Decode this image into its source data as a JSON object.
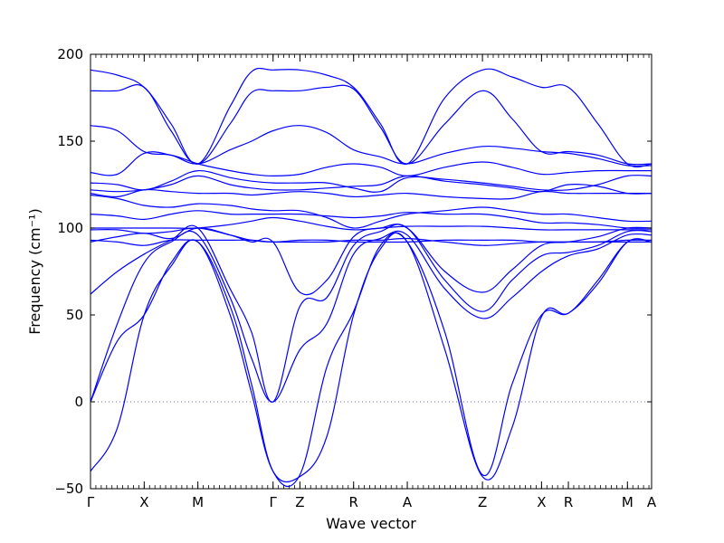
{
  "chart_data": {
    "type": "line",
    "title": "",
    "xlabel": "Wave vector",
    "ylabel": "Frequency (cm⁻¹)",
    "ylim": [
      -50,
      200
    ],
    "yticks": [
      -50,
      0,
      50,
      100,
      150,
      200
    ],
    "grid": false,
    "zero_line": {
      "y": 0,
      "style": "dotted"
    },
    "colors": {
      "bands": "#0000ff",
      "zero_line": "#6f6f9f",
      "axes": "#000000"
    },
    "x_segments": [
      {
        "label": "Γ",
        "x": 0.0
      },
      {
        "label": "X",
        "x": 1.0
      },
      {
        "label": "M",
        "x": 2.0
      },
      {
        "label": "Γ",
        "x": 3.4
      },
      {
        "label": "Z",
        "x": 3.9
      },
      {
        "label": "R",
        "x": 4.9
      },
      {
        "label": "A",
        "x": 5.9
      },
      {
        "label": "Z",
        "x": 7.3
      },
      {
        "label": "X",
        "x": 8.4
      },
      {
        "label": "R",
        "x": 8.9
      },
      {
        "label": "M",
        "x": 10.0
      },
      {
        "label": "A",
        "x": 10.45
      }
    ],
    "xlim": [
      0,
      10.45
    ],
    "series_points": {
      "x": [
        0.0,
        0.5,
        1.0,
        1.5,
        2.0,
        2.6,
        3.0,
        3.4,
        3.9,
        4.4,
        4.9,
        5.4,
        5.9,
        6.6,
        7.3,
        7.85,
        8.4,
        8.9,
        9.45,
        10.0,
        10.45
      ],
      "series": [
        {
          "values": [
            191,
            188,
            181,
            160,
            137,
            170,
            190,
            191,
            191,
            188,
            181,
            160,
            137,
            175,
            191,
            187,
            181,
            181,
            160,
            137,
            137
          ]
        },
        {
          "values": [
            179,
            179,
            181,
            156,
            137,
            160,
            178,
            179,
            179,
            181,
            180,
            158,
            137,
            160,
            179,
            163,
            144,
            144,
            142,
            137,
            137
          ]
        },
        {
          "values": [
            159,
            156,
            144,
            142,
            137,
            145,
            150,
            156,
            159,
            155,
            145,
            141,
            137,
            143,
            147,
            146,
            144,
            143,
            140,
            136,
            136
          ]
        },
        {
          "values": [
            132,
            131,
            143,
            142,
            137,
            133,
            131,
            130,
            131,
            135,
            137,
            135,
            130,
            135,
            138,
            135,
            131,
            132,
            133,
            133,
            133
          ]
        },
        {
          "values": [
            126,
            125,
            122,
            127,
            133,
            129,
            127,
            126,
            126,
            126,
            123,
            121,
            129,
            128,
            126,
            124,
            122,
            122,
            125,
            130,
            130
          ]
        },
        {
          "values": [
            122,
            121,
            122,
            125,
            130,
            125,
            123,
            122,
            122,
            123,
            124,
            125,
            130,
            127,
            125,
            123,
            121,
            125,
            124,
            120,
            120
          ]
        },
        {
          "values": [
            120,
            118,
            122,
            121,
            120,
            120,
            119,
            120,
            121,
            120,
            118,
            119,
            120,
            118,
            117,
            117,
            121,
            120,
            120,
            120,
            120
          ]
        },
        {
          "values": [
            119,
            117,
            113,
            112,
            114,
            113,
            111,
            110,
            110,
            106,
            100,
            104,
            108,
            110,
            112,
            110,
            108,
            108,
            106,
            104,
            104
          ]
        },
        {
          "values": [
            108,
            107,
            105,
            108,
            110,
            108,
            108,
            108,
            108,
            107,
            106,
            107,
            109,
            108,
            108,
            106,
            103,
            103,
            102,
            100,
            100
          ]
        },
        {
          "values": [
            100,
            100,
            100,
            100,
            100,
            102,
            104,
            106,
            104,
            101,
            99,
            100,
            101,
            101,
            101,
            100,
            99,
            99,
            99,
            99,
            99
          ]
        },
        {
          "values": [
            99,
            99,
            97,
            98,
            100,
            96,
            93,
            92,
            93,
            93,
            92,
            92,
            92,
            93,
            93,
            93,
            92,
            92,
            92,
            93,
            93
          ]
        },
        {
          "values": [
            93,
            92,
            90,
            93,
            93,
            93,
            93,
            92,
            92,
            92,
            93,
            93,
            94,
            92,
            90,
            91,
            92,
            92,
            92,
            92,
            92
          ]
        },
        {
          "values": [
            92,
            95,
            97,
            94,
            100,
            96,
            92,
            92,
            63,
            70,
            95,
            100,
            100,
            75,
            63,
            76,
            90,
            92,
            95,
            100,
            100
          ]
        },
        {
          "values": [
            62,
            75,
            85,
            93,
            100,
            65,
            40,
            0,
            55,
            60,
            90,
            98,
            100,
            70,
            52,
            70,
            84,
            86,
            90,
            98,
            98
          ]
        },
        {
          "values": [
            0,
            45,
            80,
            92,
            96,
            60,
            25,
            0,
            30,
            45,
            85,
            94,
            96,
            65,
            48,
            60,
            75,
            84,
            88,
            96,
            96
          ]
        },
        {
          "values": [
            0,
            35,
            50,
            80,
            92,
            55,
            10,
            -40,
            -42,
            20,
            52,
            90,
            92,
            40,
            -42,
            10,
            50,
            51,
            70,
            92,
            92
          ]
        },
        {
          "values": [
            -40,
            -15,
            50,
            78,
            92,
            50,
            5,
            -40,
            -43,
            -20,
            50,
            88,
            92,
            30,
            -43,
            -15,
            49,
            51,
            68,
            92,
            92
          ]
        }
      ]
    }
  }
}
